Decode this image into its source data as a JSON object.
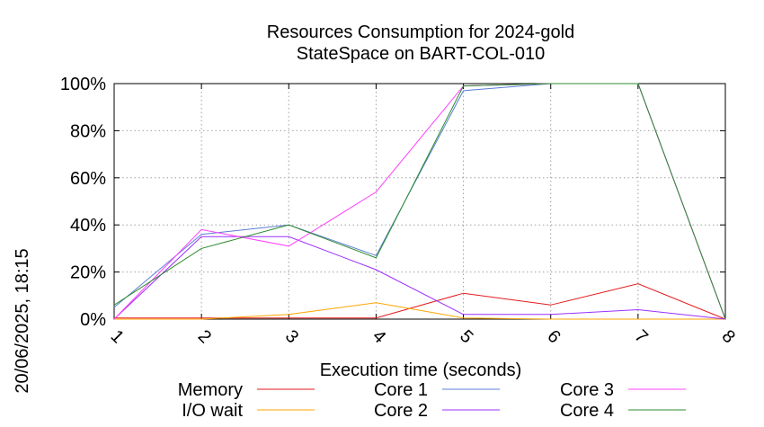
{
  "side_label": "20/06/2025, 18:15",
  "chart_data": {
    "type": "line",
    "title": [
      "Resources Consumption for 2024-gold",
      "StateSpace on BART-COL-010"
    ],
    "xlabel": "Execution time (seconds)",
    "ylabel": "",
    "x": [
      1,
      2,
      3,
      4,
      5,
      6,
      7,
      8
    ],
    "xlim": [
      1,
      8
    ],
    "ylim": [
      0,
      100
    ],
    "y_ticks": [
      "0%",
      "20%",
      "40%",
      "60%",
      "80%",
      "100%"
    ],
    "x_ticks": [
      "1",
      "2",
      "3",
      "4",
      "5",
      "6",
      "7",
      "8"
    ],
    "grid": true,
    "legend_position": "bottom",
    "series": [
      {
        "name": "Memory",
        "color": "#e41a1c",
        "values": [
          0.5,
          0.5,
          0.5,
          0.5,
          11,
          6,
          15,
          0
        ]
      },
      {
        "name": "I/O wait",
        "color": "#ffa500",
        "values": [
          0,
          0,
          2,
          7,
          0.5,
          0,
          0,
          0
        ]
      },
      {
        "name": "Core 1",
        "color": "#5b7fd6",
        "values": [
          5,
          36,
          40,
          27,
          97,
          100,
          100,
          0
        ]
      },
      {
        "name": "Core 2",
        "color": "#9b30ff",
        "values": [
          0,
          35,
          35,
          21,
          2,
          2,
          4,
          0
        ]
      },
      {
        "name": "Core 3",
        "color": "#ff40ff",
        "values": [
          0,
          38,
          31,
          54,
          99,
          100,
          100,
          0
        ]
      },
      {
        "name": "Core 4",
        "color": "#2e8b2e",
        "values": [
          6,
          30,
          40,
          26,
          99,
          100,
          100,
          0
        ]
      }
    ]
  }
}
